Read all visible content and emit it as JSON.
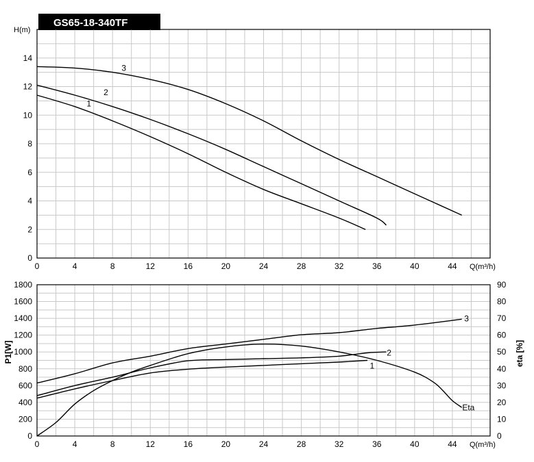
{
  "title": "GS65-18-340TF",
  "chart_data": [
    {
      "type": "line",
      "name": "head-chart",
      "ylabel": "H(m)",
      "xlabel": "Q(m³/h)",
      "xlim": [
        0,
        48
      ],
      "ylim": [
        0,
        16
      ],
      "x_ticks": [
        0,
        4,
        8,
        12,
        16,
        20,
        24,
        28,
        32,
        36,
        40,
        44
      ],
      "y_ticks": [
        0,
        2,
        4,
        6,
        8,
        10,
        12,
        14
      ],
      "grid": true,
      "series": [
        {
          "name": "1",
          "label_at": [
            5.5,
            10.8
          ],
          "points": [
            [
              0,
              11.4
            ],
            [
              4,
              10.6
            ],
            [
              8,
              9.6
            ],
            [
              12,
              8.5
            ],
            [
              16,
              7.3
            ],
            [
              20,
              6.0
            ],
            [
              24,
              4.8
            ],
            [
              28,
              3.8
            ],
            [
              32,
              2.8
            ],
            [
              34.8,
              2.0
            ]
          ]
        },
        {
          "name": "2",
          "label_at": [
            7.3,
            11.6
          ],
          "points": [
            [
              0,
              12.1
            ],
            [
              4,
              11.4
            ],
            [
              8,
              10.6
            ],
            [
              12,
              9.7
            ],
            [
              16,
              8.7
            ],
            [
              20,
              7.6
            ],
            [
              24,
              6.4
            ],
            [
              28,
              5.2
            ],
            [
              32,
              4.0
            ],
            [
              36,
              2.8
            ],
            [
              37,
              2.3
            ]
          ]
        },
        {
          "name": "3",
          "label_at": [
            9.2,
            13.3
          ],
          "points": [
            [
              0,
              13.4
            ],
            [
              4,
              13.3
            ],
            [
              8,
              13.0
            ],
            [
              12,
              12.5
            ],
            [
              16,
              11.8
            ],
            [
              20,
              10.8
            ],
            [
              24,
              9.6
            ],
            [
              28,
              8.2
            ],
            [
              32,
              6.9
            ],
            [
              36,
              5.7
            ],
            [
              40,
              4.5
            ],
            [
              45,
              3.0
            ]
          ]
        }
      ]
    },
    {
      "type": "line",
      "name": "power-efficiency-chart",
      "ylabel": "P1[W]",
      "y2label": "eta [%]",
      "xlabel": "Q(m³/h)",
      "xlim": [
        0,
        48
      ],
      "ylim": [
        0,
        1800
      ],
      "y2lim": [
        0,
        90
      ],
      "x_ticks": [
        0,
        4,
        8,
        12,
        16,
        20,
        24,
        28,
        32,
        36,
        40,
        44
      ],
      "y_ticks": [
        0,
        200,
        400,
        600,
        800,
        1000,
        1200,
        1400,
        1600,
        1800
      ],
      "y2_ticks": [
        0,
        10,
        20,
        30,
        40,
        50,
        60,
        70,
        80,
        90
      ],
      "grid": true,
      "series": [
        {
          "name": "1",
          "label_at": [
            35.5,
            835
          ],
          "points": [
            [
              0,
              450
            ],
            [
              4,
              560
            ],
            [
              8,
              660
            ],
            [
              12,
              750
            ],
            [
              16,
              795
            ],
            [
              20,
              820
            ],
            [
              24,
              840
            ],
            [
              28,
              860
            ],
            [
              32,
              880
            ],
            [
              35,
              900
            ]
          ]
        },
        {
          "name": "2",
          "label_at": [
            37.3,
            990
          ],
          "points": [
            [
              0,
              480
            ],
            [
              4,
              600
            ],
            [
              8,
              700
            ],
            [
              12,
              810
            ],
            [
              16,
              895
            ],
            [
              20,
              910
            ],
            [
              24,
              920
            ],
            [
              28,
              930
            ],
            [
              32,
              950
            ],
            [
              35,
              990
            ],
            [
              37,
              1000
            ]
          ]
        },
        {
          "name": "3",
          "label_at": [
            45.5,
            1395
          ],
          "points": [
            [
              0,
              630
            ],
            [
              4,
              740
            ],
            [
              8,
              870
            ],
            [
              12,
              950
            ],
            [
              16,
              1040
            ],
            [
              20,
              1095
            ],
            [
              24,
              1150
            ],
            [
              28,
              1205
            ],
            [
              32,
              1230
            ],
            [
              36,
              1280
            ],
            [
              40,
              1320
            ],
            [
              45,
              1390
            ]
          ]
        },
        {
          "name": "Eta",
          "axis": "right",
          "label_at": [
            45.7,
            17
          ],
          "points": [
            [
              0,
              0
            ],
            [
              2,
              8
            ],
            [
              4,
              19
            ],
            [
              6,
              27
            ],
            [
              8,
              33
            ],
            [
              10,
              38
            ],
            [
              12,
              42
            ],
            [
              16,
              49
            ],
            [
              20,
              53
            ],
            [
              24,
              54.7
            ],
            [
              28,
              53.5
            ],
            [
              32,
              50
            ],
            [
              36,
              45
            ],
            [
              40,
              38
            ],
            [
              42,
              32
            ],
            [
              43,
              27
            ],
            [
              44,
              21
            ],
            [
              45,
              17
            ]
          ]
        }
      ]
    }
  ]
}
